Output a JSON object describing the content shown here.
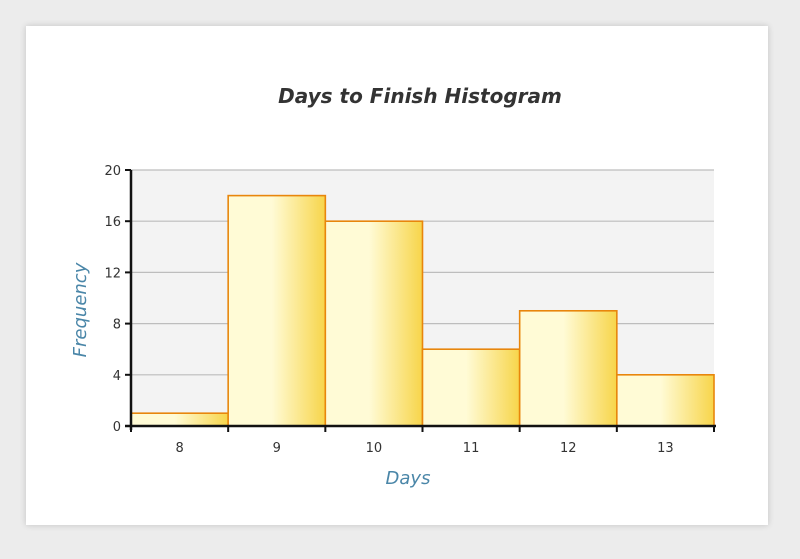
{
  "chart_data": {
    "type": "bar",
    "title": "Days to Finish Histogram",
    "xlabel": "Days",
    "ylabel": "Frequency",
    "categories": [
      "8",
      "9",
      "10",
      "11",
      "12",
      "13"
    ],
    "values": [
      1,
      18,
      16,
      6,
      9,
      4
    ],
    "ylim": [
      0,
      20
    ],
    "yticks": [
      "0",
      "4",
      "8",
      "12",
      "16",
      "20"
    ],
    "grid": true,
    "colors": {
      "bar_fill_light": "#fffbd6",
      "bar_fill_dark": "#f7d54a",
      "bar_stroke": "#e8860c",
      "plot_bg": "#f3f3f3",
      "grid": "#bdbdbd",
      "axis": "#111111"
    }
  }
}
